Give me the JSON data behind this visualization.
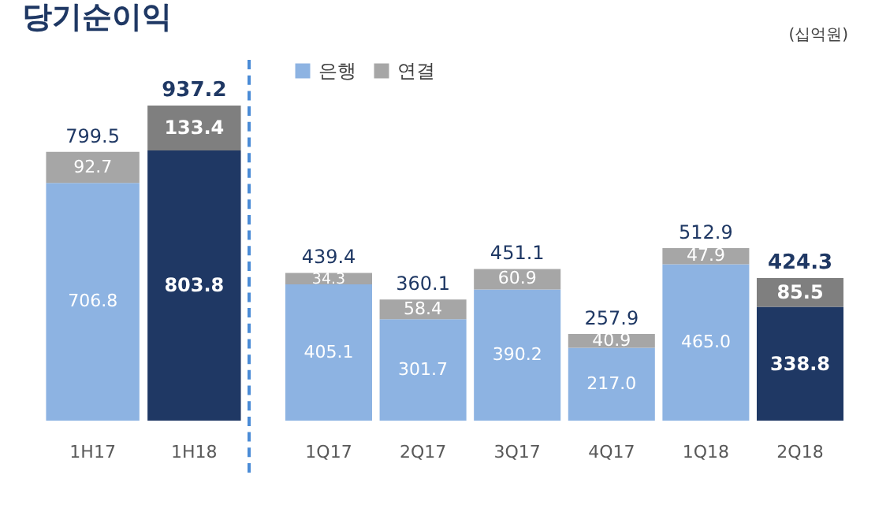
{
  "chart_data": [
    {
      "type": "bar",
      "title": "당기순이익",
      "categories": [
        "1H17",
        "1H18"
      ],
      "stacked": true,
      "totals": [
        "799.5",
        "937.2"
      ],
      "series": [
        {
          "color": "#8db3e2",
          "colors": [
            "#8db3e2",
            "#1f3864"
          ],
          "values": [
            706.8,
            803.8
          ],
          "value_labels": [
            "706.8",
            "803.8"
          ]
        },
        {
          "color": "#a6a6a6",
          "colors": [
            "#a6a6a6",
            "#7f7f7f"
          ],
          "values": [
            92.7,
            133.4
          ],
          "value_labels": [
            "92.7",
            "133.4"
          ]
        }
      ]
    },
    {
      "type": "bar",
      "categories": [
        "1Q17",
        "2Q17",
        "3Q17",
        "4Q17",
        "1Q18",
        "2Q18"
      ],
      "stacked": true,
      "legend": "top",
      "annotations": [
        "(십억원)"
      ],
      "totals": [
        "439.4",
        "360.1",
        "451.1",
        "257.9",
        "512.9",
        "424.3"
      ],
      "series": [
        {
          "name": "은행",
          "color": "#8db3e2",
          "colors": [
            "#8db3e2",
            "#8db3e2",
            "#8db3e2",
            "#8db3e2",
            "#8db3e2",
            "#1f3864"
          ],
          "values": [
            405.1,
            301.7,
            390.2,
            217.0,
            465.0,
            338.8
          ],
          "value_labels": [
            "405.1",
            "301.7",
            "390.2",
            "217.0",
            "465.0",
            "338.8"
          ]
        },
        {
          "name": "연결",
          "color": "#a6a6a6",
          "colors": [
            "#a6a6a6",
            "#a6a6a6",
            "#a6a6a6",
            "#a6a6a6",
            "#a6a6a6",
            "#7f7f7f"
          ],
          "values": [
            34.3,
            58.4,
            60.9,
            40.9,
            47.9,
            85.5
          ],
          "value_labels": [
            "34.3",
            "58.4",
            "60.9",
            "40.9",
            "47.9",
            "85.5"
          ]
        }
      ]
    }
  ]
}
